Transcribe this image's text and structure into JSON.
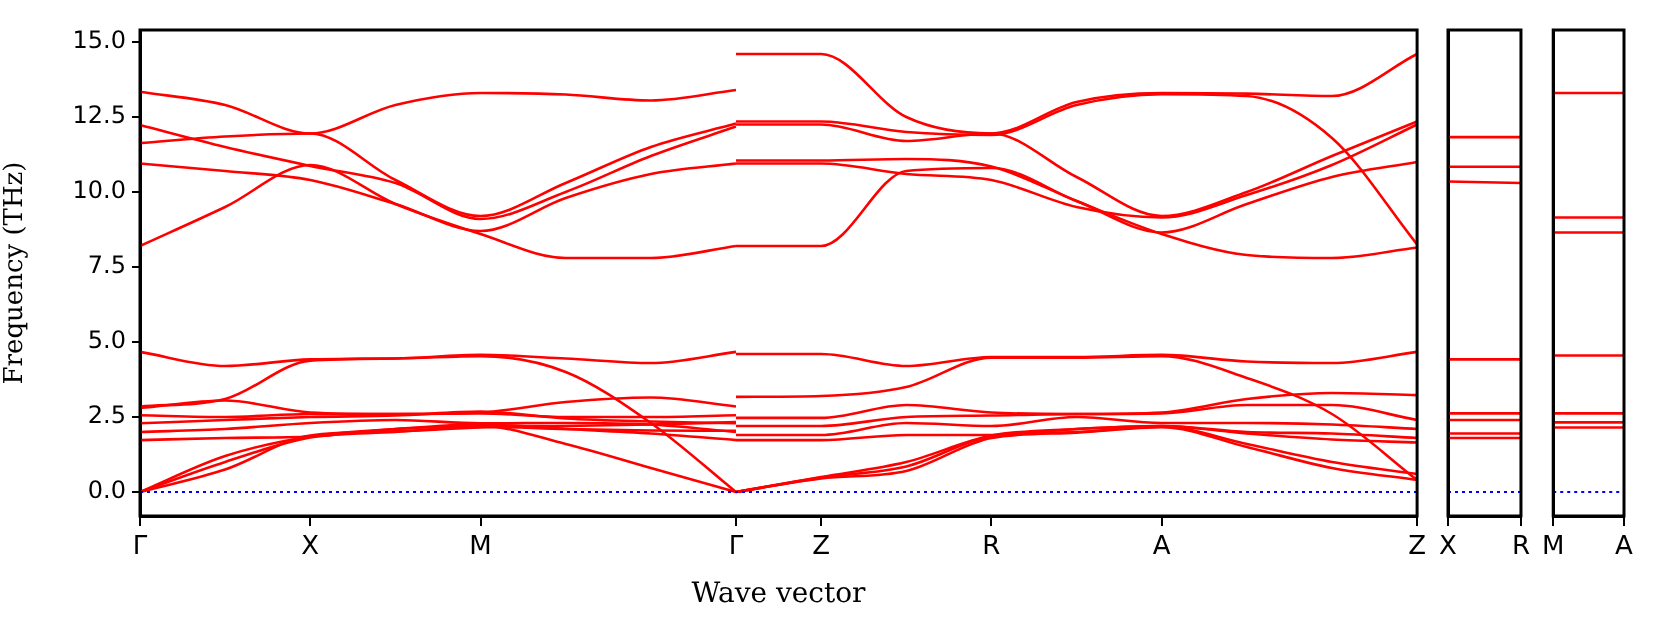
{
  "chart_data": [
    {
      "type": "line",
      "xlabel": "Wave vector",
      "ylabel": "Frequency (THz)",
      "categories": [
        "Γ",
        null,
        "X",
        null,
        "M",
        null,
        null,
        "Γ",
        "Z",
        null,
        "R",
        null,
        "A",
        null,
        null,
        "Z"
      ],
      "ylim": [
        -0.8,
        15.4
      ],
      "yticks": [
        {
          "value": 0,
          "label": "0.0"
        },
        {
          "value": 2.5,
          "label": "2.5"
        },
        {
          "value": 5,
          "label": "5.0"
        },
        {
          "value": 7.5,
          "label": "7.5"
        },
        {
          "value": 10,
          "label": "10.0"
        },
        {
          "value": 12.5,
          "label": "12.5"
        },
        {
          "value": 15,
          "label": "15.0"
        }
      ],
      "ref_lines": [
        {
          "axis": "y",
          "value": 0,
          "color": "#0000ff",
          "line_style": "dotted"
        }
      ],
      "series": [
        {
          "color": "#ff0000",
          "values": [
            13.34,
            12.9,
            11.95,
            12.9,
            13.3,
            13.25,
            13.05,
            13.4,
            null,
            null,
            null,
            null,
            null,
            null,
            null,
            null
          ]
        },
        {
          "color": "#ff0000",
          "values": [
            11.63,
            11.85,
            11.95,
            10.4,
            9.2,
            10.3,
            11.5,
            12.28,
            null,
            null,
            null,
            null,
            null,
            null,
            null,
            null
          ]
        },
        {
          "color": "#ff0000",
          "values": [
            12.23,
            11.5,
            10.87,
            10.3,
            9.1,
            10.0,
            11.2,
            12.18,
            null,
            null,
            null,
            null,
            null,
            null,
            null,
            null
          ]
        },
        {
          "color": "#ff0000",
          "values": [
            10.95,
            10.7,
            10.4,
            9.6,
            8.7,
            9.8,
            10.6,
            10.95,
            null,
            null,
            null,
            null,
            null,
            null,
            null,
            null
          ]
        },
        {
          "color": "#ff0000",
          "values": [
            8.2,
            9.5,
            10.9,
            9.6,
            8.6,
            7.8,
            7.8,
            8.2,
            null,
            null,
            null,
            null,
            null,
            null,
            null,
            null
          ]
        },
        {
          "color": "#ff0000",
          "values": [
            4.67,
            4.2,
            4.42,
            4.45,
            4.57,
            4.45,
            4.3,
            4.67,
            null,
            null,
            null,
            null,
            null,
            null,
            null,
            null
          ]
        },
        {
          "color": "#ff0000",
          "values": [
            2.85,
            3.1,
            4.38,
            4.45,
            4.53,
            4.0,
            2.3,
            0,
            null,
            null,
            null,
            null,
            null,
            null,
            null,
            null
          ]
        },
        {
          "color": "#ff0000",
          "values": [
            2.8,
            3.05,
            2.65,
            2.6,
            2.65,
            3.0,
            3.15,
            2.85,
            null,
            null,
            null,
            null,
            null,
            null,
            null,
            null
          ]
        },
        {
          "color": "#ff0000",
          "values": [
            2.56,
            2.5,
            2.6,
            2.6,
            2.62,
            2.5,
            2.5,
            2.56,
            null,
            null,
            null,
            null,
            null,
            null,
            null,
            null
          ]
        },
        {
          "color": "#ff0000",
          "values": [
            2.29,
            2.4,
            2.5,
            2.55,
            2.68,
            2.45,
            2.35,
            2.29,
            null,
            null,
            null,
            null,
            null,
            null,
            null,
            null
          ]
        },
        {
          "color": "#ff0000",
          "values": [
            2.0,
            2.1,
            2.3,
            2.4,
            2.29,
            2.3,
            2.25,
            2.0,
            null,
            null,
            null,
            null,
            null,
            null,
            null,
            null
          ]
        },
        {
          "color": "#ff0000",
          "values": [
            1.73,
            1.8,
            1.85,
            2.1,
            2.25,
            2.1,
            1.95,
            1.73,
            null,
            null,
            null,
            null,
            null,
            null,
            null,
            null
          ]
        },
        {
          "color": "#ff0000",
          "values": [
            0,
            1.2,
            1.85,
            2.1,
            2.2,
            1.6,
            0.8,
            0,
            null,
            null,
            null,
            null,
            null,
            null,
            null,
            null
          ]
        },
        {
          "color": "#ff0000",
          "values": [
            0,
            1.0,
            1.82,
            2.0,
            2.18,
            2.1,
            2.05,
            2.04,
            null,
            null,
            null,
            null,
            null,
            null,
            null,
            null
          ]
        },
        {
          "color": "#ff0000",
          "values": [
            0,
            0.75,
            1.88,
            2.02,
            2.15,
            2.2,
            2.25,
            2.33,
            null,
            null,
            null,
            null,
            null,
            null,
            null,
            null
          ]
        },
        {
          "color": "#ff0000",
          "values": [
            null,
            null,
            null,
            null,
            null,
            null,
            null,
            14.6,
            14.6,
            12.5,
            11.95,
            13.0,
            13.3,
            13.28,
            13.2,
            14.6
          ]
        },
        {
          "color": "#ff0000",
          "values": [
            null,
            null,
            null,
            null,
            null,
            null,
            null,
            12.35,
            12.35,
            12.0,
            11.9,
            12.9,
            13.26,
            13.2,
            11.8,
            8.25
          ]
        },
        {
          "color": "#ff0000",
          "values": [
            null,
            null,
            null,
            null,
            null,
            null,
            null,
            11.05,
            11.05,
            11.1,
            10.85,
            9.7,
            8.6,
            7.9,
            7.8,
            8.15
          ]
        },
        {
          "color": "#ff0000",
          "values": [
            null,
            null,
            null,
            null,
            null,
            null,
            null,
            12.25,
            12.25,
            11.7,
            11.95,
            10.5,
            9.2,
            10.0,
            11.2,
            12.35
          ]
        },
        {
          "color": "#ff0000",
          "values": [
            null,
            null,
            null,
            null,
            null,
            null,
            null,
            10.95,
            10.95,
            10.6,
            10.4,
            9.5,
            9.15,
            9.9,
            10.9,
            12.25
          ]
        },
        {
          "color": "#ff0000",
          "values": [
            null,
            null,
            null,
            null,
            null,
            null,
            null,
            8.2,
            8.2,
            10.7,
            10.8,
            9.7,
            8.65,
            9.6,
            10.5,
            11.0
          ]
        },
        {
          "color": "#ff0000",
          "values": [
            null,
            null,
            null,
            null,
            null,
            null,
            null,
            4.6,
            4.6,
            4.2,
            4.5,
            4.5,
            4.57,
            4.35,
            4.3,
            4.67
          ]
        },
        {
          "color": "#ff0000",
          "values": [
            null,
            null,
            null,
            null,
            null,
            null,
            null,
            3.17,
            3.2,
            3.5,
            4.48,
            4.48,
            4.53,
            3.8,
            2.6,
            0.4
          ]
        },
        {
          "color": "#ff0000",
          "values": [
            null,
            null,
            null,
            null,
            null,
            null,
            null,
            2.47,
            2.47,
            2.9,
            2.65,
            2.6,
            2.65,
            3.1,
            3.3,
            3.23
          ]
        },
        {
          "color": "#ff0000",
          "values": [
            null,
            null,
            null,
            null,
            null,
            null,
            null,
            2.2,
            2.2,
            2.5,
            2.55,
            2.6,
            2.62,
            2.9,
            2.9,
            2.4
          ]
        },
        {
          "color": "#ff0000",
          "values": [
            null,
            null,
            null,
            null,
            null,
            null,
            null,
            1.9,
            1.9,
            2.3,
            2.2,
            2.5,
            2.3,
            2.3,
            2.25,
            2.1
          ]
        },
        {
          "color": "#ff0000",
          "values": [
            null,
            null,
            null,
            null,
            null,
            null,
            null,
            1.73,
            1.73,
            1.9,
            1.9,
            2.1,
            2.2,
            2.0,
            1.95,
            1.8
          ]
        },
        {
          "color": "#ff0000",
          "values": [
            null,
            null,
            null,
            null,
            null,
            null,
            null,
            0,
            0.5,
            1.0,
            1.88,
            2.1,
            2.2,
            1.95,
            1.75,
            1.65
          ]
        },
        {
          "color": "#ff0000",
          "values": [
            null,
            null,
            null,
            null,
            null,
            null,
            null,
            0,
            0.48,
            0.85,
            1.85,
            2.0,
            2.18,
            1.6,
            1.0,
            0.6
          ]
        },
        {
          "color": "#ff0000",
          "values": [
            null,
            null,
            null,
            null,
            null,
            null,
            null,
            0,
            0.45,
            0.7,
            1.8,
            1.98,
            2.16,
            1.5,
            0.8,
            0.4
          ]
        }
      ]
    },
    {
      "type": "line",
      "categories": [
        "X",
        "R"
      ],
      "ylim": [
        -0.8,
        15.4
      ],
      "tick_labels": "x",
      "ref_lines": [
        {
          "axis": "y",
          "value": 0,
          "color": "#0000ff",
          "line_style": "dotted"
        }
      ],
      "series": [
        {
          "color": "#ff0000",
          "values": [
            11.83,
            11.83
          ]
        },
        {
          "color": "#ff0000",
          "values": [
            10.84,
            10.84
          ]
        },
        {
          "color": "#ff0000",
          "values": [
            10.35,
            10.3
          ]
        },
        {
          "color": "#ff0000",
          "values": [
            4.42,
            4.42
          ]
        },
        {
          "color": "#ff0000",
          "values": [
            2.62,
            2.62
          ]
        },
        {
          "color": "#ff0000",
          "values": [
            2.4,
            2.4
          ]
        },
        {
          "color": "#ff0000",
          "values": [
            1.95,
            1.95
          ]
        },
        {
          "color": "#ff0000",
          "values": [
            1.8,
            1.8
          ]
        }
      ]
    },
    {
      "type": "line",
      "categories": [
        "M",
        "A"
      ],
      "ylim": [
        -0.8,
        15.4
      ],
      "tick_labels": "x",
      "ref_lines": [
        {
          "axis": "y",
          "value": 0,
          "color": "#0000ff",
          "line_style": "dotted"
        }
      ],
      "series": [
        {
          "color": "#ff0000",
          "values": [
            13.3,
            13.3
          ]
        },
        {
          "color": "#ff0000",
          "values": [
            9.15,
            9.15
          ]
        },
        {
          "color": "#ff0000",
          "values": [
            8.65,
            8.65
          ]
        },
        {
          "color": "#ff0000",
          "values": [
            4.55,
            4.55
          ]
        },
        {
          "color": "#ff0000",
          "values": [
            2.62,
            2.62
          ]
        },
        {
          "color": "#ff0000",
          "values": [
            2.32,
            2.32
          ]
        },
        {
          "color": "#ff0000",
          "values": [
            2.15,
            2.15
          ]
        }
      ]
    }
  ]
}
